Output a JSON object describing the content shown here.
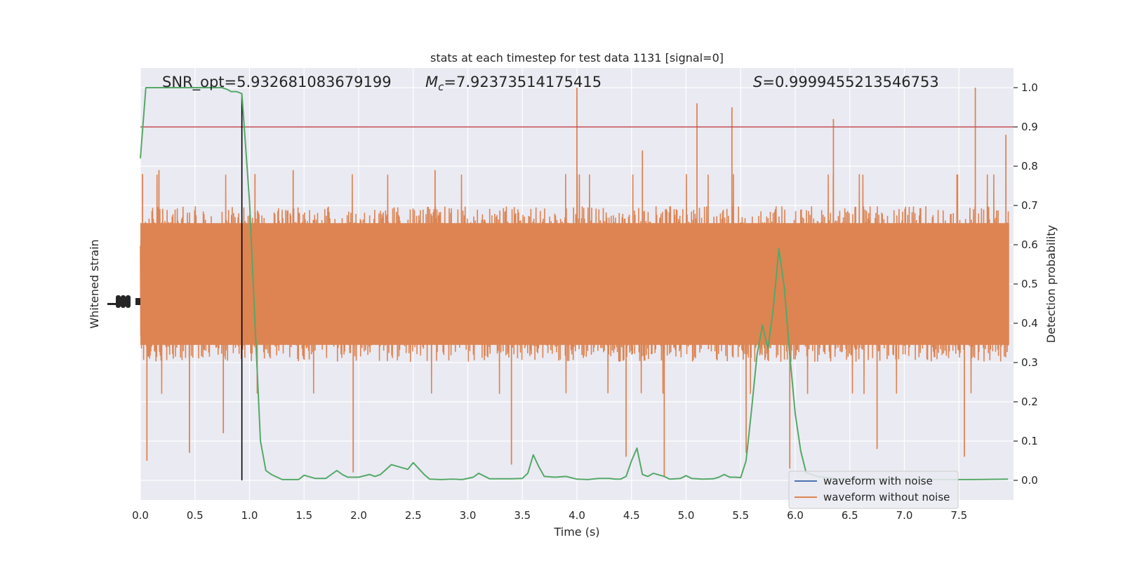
{
  "chart_data": {
    "type": "line",
    "title": "stats at each timestep for test data 1131 [signal=0]",
    "xlabel": "Time (s)",
    "ylabel_left": "Whitened strain",
    "ylabel_right": "Detection probability",
    "xlim": [
      0.0,
      8.0
    ],
    "ylim_right": [
      -0.05,
      1.05
    ],
    "xticks": [
      0.0,
      0.5,
      1.0,
      1.5,
      2.0,
      2.5,
      3.0,
      3.5,
      4.0,
      4.5,
      5.0,
      5.5,
      6.0,
      6.5,
      7.0,
      7.5
    ],
    "xtick_labels": [
      "0.0",
      "0.5",
      "1.0",
      "1.5",
      "2.0",
      "2.5",
      "3.0",
      "3.5",
      "4.0",
      "4.5",
      "5.0",
      "5.5",
      "6.0",
      "6.5",
      "7.0",
      "7.5"
    ],
    "yticks_right": [
      0.0,
      0.1,
      0.2,
      0.3,
      0.4,
      0.5,
      0.6,
      0.7,
      0.8,
      0.9,
      1.0
    ],
    "ytick_labels_right": [
      "0.0",
      "0.1",
      "0.2",
      "0.3",
      "0.4",
      "0.5",
      "0.6",
      "0.7",
      "0.8",
      "0.9",
      "1.0"
    ],
    "grid": true,
    "legend_position": "lower-right",
    "annotations": {
      "snr_label": "SNR_opt=5.932681083679199",
      "mc_prefix": "M",
      "mc_sub": "c",
      "mc_value": "=7.92373514175415",
      "s_prefix": "S",
      "s_value": "=0.9999455213546753"
    },
    "threshold": 0.9,
    "vline_x": 0.93,
    "series": [
      {
        "name": "waveform with noise",
        "color": "#4c72b0",
        "style": "legend-only"
      },
      {
        "name": "waveform without noise",
        "color": "#dd8452",
        "style": "dense-noise",
        "center": 0.5,
        "typical_spread": 0.2,
        "spikes": [
          {
            "x": 0.02,
            "y": 0.78
          },
          {
            "x": 0.06,
            "y": 0.05
          },
          {
            "x": 0.17,
            "y": 0.79
          },
          {
            "x": 0.45,
            "y": 0.07
          },
          {
            "x": 0.76,
            "y": 0.12
          },
          {
            "x": 1.05,
            "y": 0.78
          },
          {
            "x": 1.4,
            "y": 0.79
          },
          {
            "x": 1.95,
            "y": 0.02
          },
          {
            "x": 2.7,
            "y": 0.79
          },
          {
            "x": 3.4,
            "y": 0.04
          },
          {
            "x": 4.0,
            "y": 1.0
          },
          {
            "x": 4.45,
            "y": 0.06
          },
          {
            "x": 4.6,
            "y": 0.84
          },
          {
            "x": 4.8,
            "y": 0.01
          },
          {
            "x": 5.1,
            "y": 0.96
          },
          {
            "x": 5.42,
            "y": 0.95
          },
          {
            "x": 5.55,
            "y": 0.07
          },
          {
            "x": 5.95,
            "y": 0.03
          },
          {
            "x": 6.35,
            "y": 0.92
          },
          {
            "x": 6.75,
            "y": 0.08
          },
          {
            "x": 7.55,
            "y": 0.06
          },
          {
            "x": 7.65,
            "y": 1.0
          },
          {
            "x": 7.93,
            "y": 0.88
          }
        ]
      },
      {
        "name": "detection probability",
        "color": "#55a868",
        "points": [
          [
            0.0,
            0.82
          ],
          [
            0.05,
            1.0
          ],
          [
            0.1,
            1.0
          ],
          [
            0.2,
            1.0
          ],
          [
            0.5,
            1.0
          ],
          [
            0.75,
            1.0
          ],
          [
            0.8,
            0.995
          ],
          [
            0.83,
            0.99
          ],
          [
            0.88,
            0.99
          ],
          [
            0.93,
            0.985
          ],
          [
            1.0,
            0.71
          ],
          [
            1.05,
            0.4
          ],
          [
            1.1,
            0.1
          ],
          [
            1.15,
            0.025
          ],
          [
            1.2,
            0.015
          ],
          [
            1.3,
            0.002
          ],
          [
            1.45,
            0.002
          ],
          [
            1.5,
            0.013
          ],
          [
            1.6,
            0.005
          ],
          [
            1.7,
            0.005
          ],
          [
            1.8,
            0.025
          ],
          [
            1.85,
            0.015
          ],
          [
            1.9,
            0.008
          ],
          [
            2.0,
            0.008
          ],
          [
            2.1,
            0.015
          ],
          [
            2.15,
            0.01
          ],
          [
            2.2,
            0.015
          ],
          [
            2.3,
            0.04
          ],
          [
            2.45,
            0.028
          ],
          [
            2.5,
            0.045
          ],
          [
            2.6,
            0.015
          ],
          [
            2.65,
            0.003
          ],
          [
            2.75,
            0.002
          ],
          [
            2.85,
            0.003
          ],
          [
            2.95,
            0.002
          ],
          [
            3.05,
            0.008
          ],
          [
            3.1,
            0.018
          ],
          [
            3.2,
            0.004
          ],
          [
            3.3,
            0.004
          ],
          [
            3.4,
            0.004
          ],
          [
            3.5,
            0.005
          ],
          [
            3.55,
            0.018
          ],
          [
            3.6,
            0.065
          ],
          [
            3.65,
            0.035
          ],
          [
            3.7,
            0.01
          ],
          [
            3.8,
            0.008
          ],
          [
            3.9,
            0.01
          ],
          [
            4.0,
            0.003
          ],
          [
            4.1,
            0.002
          ],
          [
            4.2,
            0.005
          ],
          [
            4.3,
            0.005
          ],
          [
            4.35,
            0.003
          ],
          [
            4.4,
            0.003
          ],
          [
            4.45,
            0.01
          ],
          [
            4.5,
            0.05
          ],
          [
            4.55,
            0.082
          ],
          [
            4.6,
            0.015
          ],
          [
            4.65,
            0.01
          ],
          [
            4.7,
            0.018
          ],
          [
            4.8,
            0.01
          ],
          [
            4.85,
            0.003
          ],
          [
            4.95,
            0.005
          ],
          [
            5.0,
            0.012
          ],
          [
            5.05,
            0.005
          ],
          [
            5.15,
            0.003
          ],
          [
            5.25,
            0.004
          ],
          [
            5.3,
            0.008
          ],
          [
            5.35,
            0.015
          ],
          [
            5.4,
            0.008
          ],
          [
            5.45,
            0.008
          ],
          [
            5.5,
            0.007
          ],
          [
            5.55,
            0.05
          ],
          [
            5.6,
            0.18
          ],
          [
            5.65,
            0.32
          ],
          [
            5.7,
            0.395
          ],
          [
            5.75,
            0.335
          ],
          [
            5.8,
            0.44
          ],
          [
            5.85,
            0.59
          ],
          [
            5.9,
            0.49
          ],
          [
            5.95,
            0.32
          ],
          [
            6.0,
            0.17
          ],
          [
            6.05,
            0.075
          ],
          [
            6.1,
            0.02
          ],
          [
            6.2,
            0.01
          ],
          [
            6.4,
            0.003
          ],
          [
            6.8,
            0.003
          ],
          [
            7.2,
            0.002
          ],
          [
            7.6,
            0.002
          ],
          [
            7.95,
            0.003
          ]
        ]
      }
    ]
  }
}
